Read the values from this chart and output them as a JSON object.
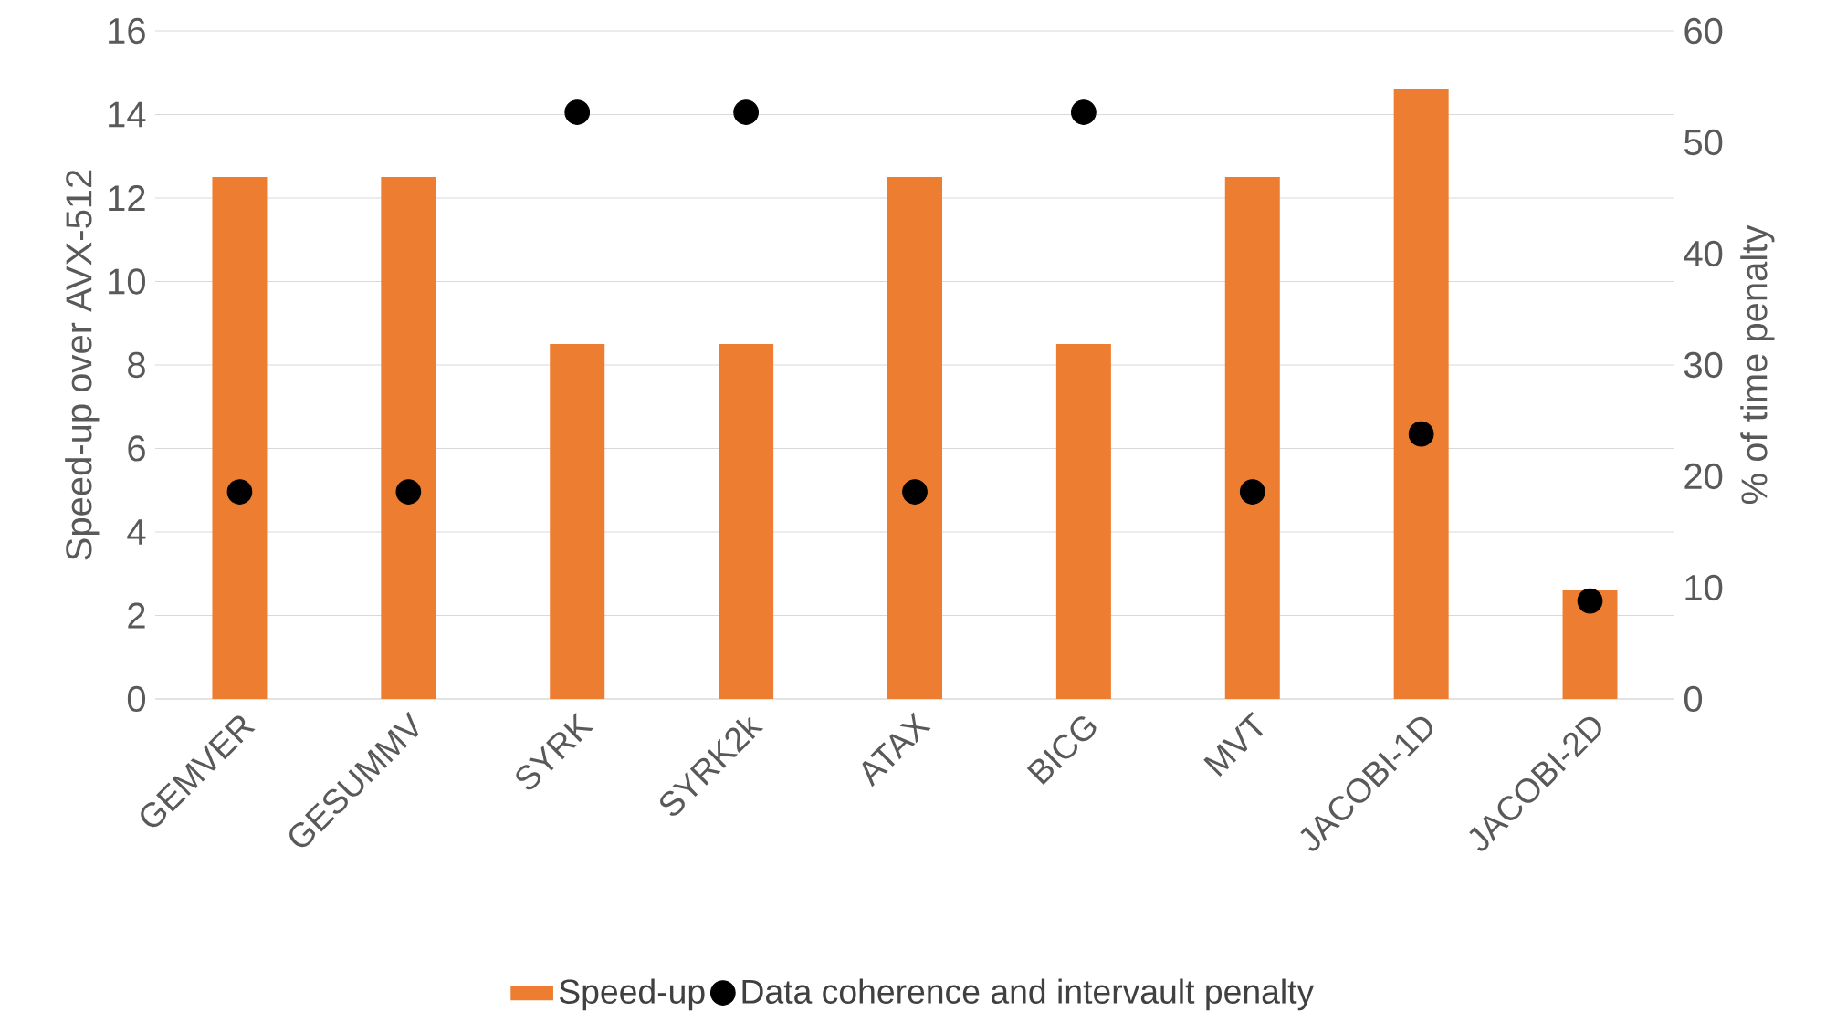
{
  "chart_data": {
    "type": "bar",
    "ylabel": "Speed-up over AVX-512",
    "y2label": "% of time penalty",
    "categories": [
      "GEMVER",
      "GESUMMV",
      "SYRK",
      "SYRK2k",
      "ATAX",
      "BICG",
      "MVT",
      "JACOBI-1D",
      "JACOBI-2D"
    ],
    "series": [
      {
        "name": "Speed-up",
        "color": "#ed7d31",
        "values": [
          12.5,
          12.5,
          8.5,
          8.5,
          12.5,
          8.5,
          12.5,
          14.6,
          2.6
        ]
      },
      {
        "name": "Data coherence and intervault penalty",
        "type": "scatter",
        "axis": "y2",
        "color": "#000000",
        "values": [
          18.6,
          18.6,
          52.7,
          52.7,
          18.6,
          52.7,
          18.6,
          23.8,
          8.8
        ]
      }
    ],
    "ylim": [
      0,
      16
    ],
    "yticks": [
      0,
      2,
      4,
      6,
      8,
      10,
      12,
      14,
      16
    ],
    "y2lim": [
      0,
      60
    ],
    "y2ticks": [
      0,
      10,
      20,
      30,
      40,
      50,
      60
    ],
    "grid": "y",
    "legend": "bottom",
    "marker": "circle"
  }
}
